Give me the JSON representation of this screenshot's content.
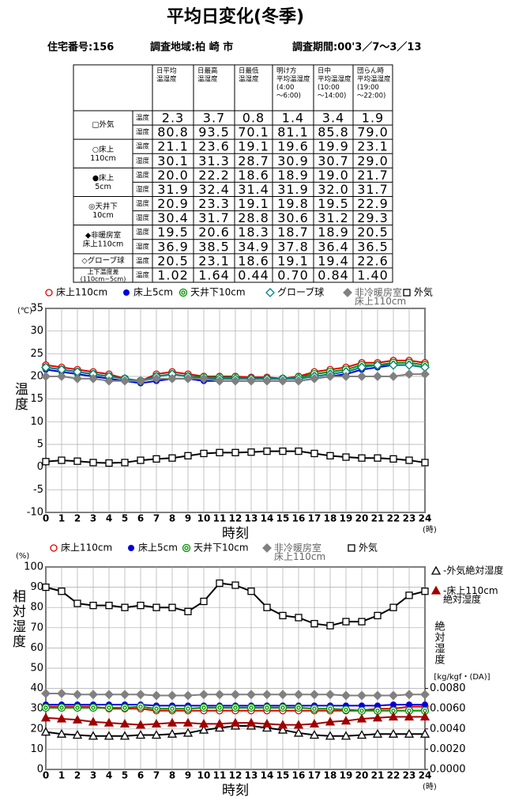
{
  "header": {
    "title": "平均日変化(冬季)",
    "house_no": "住宅番号:156",
    "area": "調査地域:柏 崎 市",
    "period": "調査期間:00'3／7～3／13"
  },
  "table": {
    "columns": [
      "日平均\n温湿度",
      "日最高\n温湿度",
      "日最低\n温湿度",
      "明け方\n平均温湿度\n(4:00\n～6:00)",
      "日中\n平均温湿度\n(10:00\n～14:00)",
      "団らん時\n平均温湿度\n(19:00\n～22:00)"
    ],
    "groups": [
      {
        "label": "□外気",
        "rows": [
          {
            "kind": "温度",
            "cells": [
              "2.3",
              "3.7",
              "0.8",
              "1.4",
              "3.4",
              "1.9"
            ]
          },
          {
            "kind": "湿度",
            "cells": [
              "80.8",
              "93.5",
              "70.1",
              "81.1",
              "85.8",
              "79.0"
            ]
          }
        ]
      },
      {
        "label": "○床上\n110cm",
        "rows": [
          {
            "kind": "温度",
            "cells": [
              "21.1",
              "23.6",
              "19.1",
              "19.6",
              "19.9",
              "23.1"
            ]
          },
          {
            "kind": "湿度",
            "cells": [
              "30.1",
              "31.3",
              "28.7",
              "30.9",
              "30.7",
              "29.0"
            ]
          }
        ]
      },
      {
        "label": "●床上\n5cm",
        "rows": [
          {
            "kind": "温度",
            "cells": [
              "20.0",
              "22.2",
              "18.6",
              "18.9",
              "19.0",
              "21.7"
            ]
          },
          {
            "kind": "湿度",
            "cells": [
              "31.9",
              "32.4",
              "31.4",
              "31.9",
              "32.0",
              "31.7"
            ]
          }
        ]
      },
      {
        "label": "◎天井下\n10cm",
        "rows": [
          {
            "kind": "温度",
            "cells": [
              "20.9",
              "23.3",
              "19.1",
              "19.8",
              "19.5",
              "22.9"
            ]
          },
          {
            "kind": "湿度",
            "cells": [
              "30.4",
              "31.7",
              "28.8",
              "30.6",
              "31.2",
              "29.3"
            ]
          }
        ]
      },
      {
        "label": "◆非暖房室\n床上110cm",
        "rows": [
          {
            "kind": "温度",
            "cells": [
              "19.5",
              "20.6",
              "18.3",
              "18.7",
              "18.9",
              "20.5"
            ]
          },
          {
            "kind": "湿度",
            "cells": [
              "36.9",
              "38.5",
              "34.9",
              "37.8",
              "36.4",
              "36.5"
            ]
          }
        ]
      },
      {
        "label": "◇グローブ球",
        "rows": [
          {
            "kind": "温度",
            "cells": [
              "20.5",
              "23.1",
              "18.6",
              "19.1",
              "19.4",
              "22.6"
            ]
          }
        ]
      },
      {
        "label": "上下温度差\n(110cm−5cm)",
        "rows": [
          {
            "kind": "温度",
            "cells": [
              "1.02",
              "1.64",
              "0.44",
              "0.70",
              "0.84",
              "1.40"
            ]
          }
        ]
      }
    ]
  },
  "chart_data": [
    {
      "type": "line",
      "y_label": "温度",
      "y_unit": "(℃)",
      "x_label": "時刻",
      "x_unit": "(時)",
      "grid": true,
      "x": [
        0,
        1,
        2,
        3,
        4,
        5,
        6,
        7,
        8,
        9,
        10,
        11,
        12,
        13,
        14,
        15,
        16,
        17,
        18,
        19,
        20,
        21,
        22,
        23,
        24
      ],
      "xlim": [
        0,
        24
      ],
      "xticks": [
        0,
        1,
        2,
        3,
        4,
        5,
        6,
        7,
        8,
        9,
        10,
        11,
        12,
        13,
        14,
        15,
        16,
        17,
        18,
        19,
        20,
        21,
        22,
        23,
        24
      ],
      "ylim": [
        -10,
        35
      ],
      "yticks": [
        -10,
        -5,
        0,
        5,
        10,
        15,
        20,
        25,
        30,
        35
      ],
      "series": [
        {
          "name": "床上110cm",
          "color": "#e00000",
          "marker": "circle-open",
          "values": [
            22.5,
            22,
            21.5,
            21,
            20.5,
            19.5,
            19,
            20.5,
            21,
            20.5,
            20,
            20,
            20,
            19.8,
            19.8,
            19.5,
            20,
            21,
            21.5,
            22,
            23,
            23,
            23.5,
            23.5,
            23
          ]
        },
        {
          "name": "床上5cm",
          "color": "#0000e0",
          "marker": "circle-filled",
          "values": [
            21.5,
            21,
            20.5,
            20,
            19.5,
            19,
            18.5,
            19,
            19.5,
            19.5,
            19,
            19,
            19,
            19,
            19,
            19,
            19,
            19.5,
            20,
            20.5,
            21.5,
            22,
            22.5,
            22.5,
            22
          ]
        },
        {
          "name": "天井下10cm",
          "color": "#009000",
          "marker": "circle-double",
          "values": [
            22,
            21.5,
            21,
            20.5,
            20,
            19.5,
            19,
            20,
            20.5,
            20,
            19.8,
            19.8,
            19.8,
            19.5,
            19.5,
            19.5,
            19.8,
            20.5,
            21,
            21.5,
            22.5,
            22.5,
            23,
            23,
            22.5
          ]
        },
        {
          "name": "グローブ球",
          "color": "#008080",
          "marker": "diamond-open",
          "values": [
            22,
            21.5,
            21,
            20.5,
            20,
            19.5,
            19,
            20,
            20.5,
            20,
            19.5,
            19.5,
            19.5,
            19.5,
            19.5,
            19.5,
            19.5,
            20,
            20.5,
            21,
            22,
            22.5,
            22.5,
            22.5,
            22
          ]
        },
        {
          "name": "非冷暖房室\n床上110cm",
          "color": "#808080",
          "marker": "diamond-filled",
          "values": [
            20,
            20,
            19.5,
            19.5,
            19,
            19,
            19,
            19.5,
            19.5,
            19.5,
            19.5,
            19,
            19,
            19,
            19,
            19,
            19,
            19.5,
            20,
            20,
            20,
            20,
            20,
            20.5,
            20.5
          ]
        },
        {
          "name": "外気",
          "color": "#000000",
          "marker": "square-open",
          "values": [
            1.2,
            1.5,
            1.3,
            1.0,
            0.9,
            1.0,
            1.5,
            1.8,
            2.0,
            2.5,
            3.0,
            3.2,
            3.2,
            3.3,
            3.5,
            3.5,
            3.5,
            3.0,
            2.5,
            2.2,
            2.0,
            2.0,
            1.8,
            1.5,
            1.0
          ]
        }
      ]
    },
    {
      "type": "line",
      "y_label": "相対湿度",
      "y_unit": "(%)",
      "y2_label": "絶対湿度",
      "y2_unit": "[kg/kgf・(DA)]",
      "x_label": "時刻",
      "x_unit": "(時)",
      "grid": true,
      "x": [
        0,
        1,
        2,
        3,
        4,
        5,
        6,
        7,
        8,
        9,
        10,
        11,
        12,
        13,
        14,
        15,
        16,
        17,
        18,
        19,
        20,
        21,
        22,
        23,
        24
      ],
      "xlim": [
        0,
        24
      ],
      "xticks": [
        0,
        1,
        2,
        3,
        4,
        5,
        6,
        7,
        8,
        9,
        10,
        11,
        12,
        13,
        14,
        15,
        16,
        17,
        18,
        19,
        20,
        21,
        22,
        23,
        24
      ],
      "ylim": [
        0,
        100
      ],
      "yticks": [
        0,
        10,
        20,
        30,
        40,
        50,
        60,
        70,
        80,
        90,
        100
      ],
      "y2lim": [
        0,
        0.02
      ],
      "y2ticks": [
        {
          "value": 0,
          "label": "0.0000"
        },
        {
          "value": 0.002,
          "label": "0.0020"
        },
        {
          "value": 0.004,
          "label": "0.0040"
        },
        {
          "value": 0.006,
          "label": "0.0060"
        },
        {
          "value": 0.008,
          "label": "0.0080"
        }
      ],
      "series": [
        {
          "name": "床上110cm",
          "color": "#e00000",
          "marker": "circle-open",
          "values": [
            31,
            31,
            31,
            31,
            30,
            30,
            30,
            29,
            29,
            29,
            29,
            29,
            29,
            29,
            29,
            29,
            29,
            29,
            29,
            29,
            29,
            30,
            30,
            31,
            31
          ]
        },
        {
          "name": "床上5cm",
          "color": "#0000e0",
          "marker": "circle-filled",
          "values": [
            32,
            32,
            32,
            32,
            32,
            32,
            32,
            31.5,
            31.5,
            31.5,
            31.5,
            31.5,
            31.5,
            31.5,
            31.5,
            31.5,
            31.5,
            31.5,
            31.5,
            31.5,
            31.5,
            31.5,
            32,
            32,
            32
          ]
        },
        {
          "name": "天井下10cm",
          "color": "#009000",
          "marker": "circle-double",
          "values": [
            30.5,
            30.5,
            30.5,
            30.5,
            30.5,
            30.5,
            31,
            30,
            30,
            30,
            30.5,
            30.5,
            30.5,
            30.5,
            30.5,
            30.5,
            30.5,
            30,
            30,
            29.5,
            29,
            29,
            29,
            29,
            29
          ]
        },
        {
          "name": "非冷暖房室\n床上110cm",
          "color": "#808080",
          "marker": "diamond-filled",
          "values": [
            37.5,
            37.5,
            37,
            37,
            37,
            37,
            37,
            36.5,
            36.5,
            36.5,
            37,
            37,
            37,
            37,
            37,
            37,
            37,
            37,
            37,
            36.5,
            36.5,
            36.5,
            36.5,
            37,
            37
          ]
        },
        {
          "name": "外気",
          "color": "#000000",
          "marker": "square-open",
          "values": [
            90,
            88,
            82,
            81,
            81,
            80,
            81,
            80,
            80,
            78,
            83,
            92,
            91,
            88,
            80,
            76,
            75,
            72,
            71,
            73,
            73,
            76,
            80,
            86,
            88
          ]
        },
        {
          "name": "-外気絶対湿度",
          "color": "#000000",
          "marker": "triangle-open",
          "axis": "y2",
          "values": [
            0.0037,
            0.0035,
            0.0034,
            0.0033,
            0.0033,
            0.0033,
            0.0034,
            0.0034,
            0.0035,
            0.0036,
            0.0039,
            0.0041,
            0.0043,
            0.0043,
            0.0041,
            0.0039,
            0.0036,
            0.0034,
            0.0033,
            0.0033,
            0.0034,
            0.0035,
            0.0035,
            0.0035,
            0.0035
          ]
        },
        {
          "name": "-床上110cm\n絶対湿度",
          "color": "#a00000",
          "marker": "triangle-filled",
          "axis": "y2",
          "values": [
            0.0051,
            0.005,
            0.0049,
            0.0047,
            0.0046,
            0.0045,
            0.0044,
            0.0045,
            0.0046,
            0.0046,
            0.0045,
            0.0045,
            0.0046,
            0.0046,
            0.0045,
            0.0044,
            0.0044,
            0.0045,
            0.0047,
            0.0048,
            0.005,
            0.0051,
            0.0052,
            0.0052,
            0.0052
          ]
        }
      ]
    }
  ]
}
